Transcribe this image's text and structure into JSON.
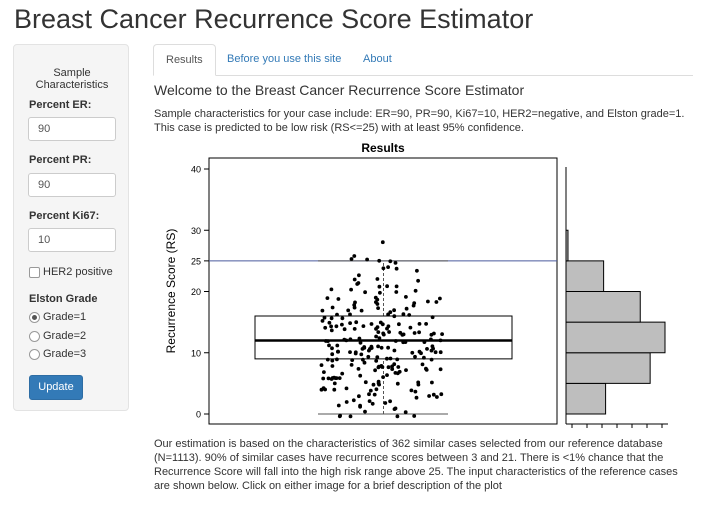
{
  "app": {
    "title": "Breast Cancer Recurrence Score Estimator"
  },
  "sidebar": {
    "title_line1": "Sample",
    "title_line2": "Characteristics",
    "er_label": "Percent ER:",
    "er_value": "90",
    "pr_label": "Percent PR:",
    "pr_value": "90",
    "ki67_label": "Percent Ki67:",
    "ki67_value": "10",
    "her2_label": "HER2 positive",
    "her2_checked": false,
    "grade_label": "Elston Grade",
    "grades": [
      "Grade=1",
      "Grade=2",
      "Grade=3"
    ],
    "selected_grade": "Grade=1",
    "update_label": "Update"
  },
  "tabs": [
    "Results",
    "Before you use this site",
    "About"
  ],
  "active_tab": "Results",
  "main": {
    "welcome": "Welcome to the Breast Cancer Recurrence Score Estimator",
    "summary": "Sample characteristics for your case include: ER=90, PR=90, Ki67=10, HER2=negative, and Elston grade=1. This case is predicted to be low risk (RS<=25) with at least 95% confidence.",
    "estimation": "Our estimation is based on the characteristics of 362 similar cases selected from our reference database (N=1113). 90% of similar cases have recurrence scores between 3 and 21. There is <1% chance that the Recurrence Score will fall into the high risk range above 25. The input characteristics of the reference cases are shown below. Click on either image for a brief description of the plot"
  },
  "colors": {
    "accent": "#337ab7",
    "threshold_line": "#4a5a9e",
    "hist_fill": "#bebebe"
  },
  "chart_data": {
    "type": "scatter",
    "title": "Results",
    "ylabel": "Recurrence Score (RS)",
    "xlabel": "",
    "ylim": [
      -1,
      41
    ],
    "yticks": [
      0,
      10,
      20,
      25,
      30,
      40
    ],
    "threshold": 25,
    "boxplot": {
      "min": 0,
      "q1": 9,
      "median": 12,
      "q3": 16,
      "max": 25
    },
    "points_rs": [
      28,
      26,
      25,
      25,
      25,
      25,
      25,
      24,
      24,
      24,
      23,
      23,
      22,
      22,
      22,
      21,
      21,
      21,
      21,
      21,
      20,
      20,
      20,
      20,
      20,
      20,
      19,
      19,
      19,
      19,
      19,
      19,
      18,
      18,
      18,
      18,
      18,
      18,
      18,
      18,
      17,
      17,
      17,
      17,
      17,
      17,
      17,
      17,
      17,
      16,
      16,
      16,
      16,
      16,
      16,
      16,
      16,
      16,
      16,
      15,
      15,
      15,
      15,
      15,
      15,
      15,
      15,
      15,
      15,
      15,
      14,
      14,
      14,
      14,
      14,
      14,
      14,
      14,
      14,
      14,
      14,
      14,
      13,
      13,
      13,
      13,
      13,
      13,
      13,
      13,
      13,
      13,
      13,
      13,
      13,
      12,
      12,
      12,
      12,
      12,
      12,
      12,
      12,
      12,
      12,
      12,
      12,
      12,
      12,
      11,
      11,
      11,
      11,
      11,
      11,
      11,
      11,
      11,
      11,
      11,
      11,
      11,
      11,
      11,
      10,
      10,
      10,
      10,
      10,
      10,
      10,
      10,
      10,
      10,
      10,
      10,
      10,
      10,
      10,
      9,
      9,
      9,
      9,
      9,
      9,
      9,
      9,
      9,
      9,
      9,
      9,
      9,
      9,
      8,
      8,
      8,
      8,
      8,
      8,
      8,
      8,
      8,
      8,
      8,
      8,
      8,
      7,
      7,
      7,
      7,
      7,
      7,
      7,
      7,
      7,
      7,
      7,
      7,
      6,
      6,
      6,
      6,
      6,
      6,
      6,
      6,
      6,
      6,
      6,
      5,
      5,
      5,
      5,
      5,
      5,
      5,
      5,
      5,
      5,
      4,
      4,
      4,
      4,
      4,
      4,
      4,
      4,
      4,
      3,
      3,
      3,
      3,
      3,
      3,
      3,
      3,
      2,
      2,
      2,
      2,
      2,
      2,
      1,
      1,
      1,
      1,
      1,
      0,
      0,
      0,
      0,
      0,
      0,
      0
    ],
    "histogram": {
      "bins": [
        [
          0,
          5
        ],
        [
          5,
          10
        ],
        [
          10,
          15
        ],
        [
          15,
          20
        ],
        [
          20,
          25
        ],
        [
          25,
          30
        ]
      ],
      "counts": [
        40,
        85,
        100,
        75,
        38,
        2
      ]
    }
  }
}
